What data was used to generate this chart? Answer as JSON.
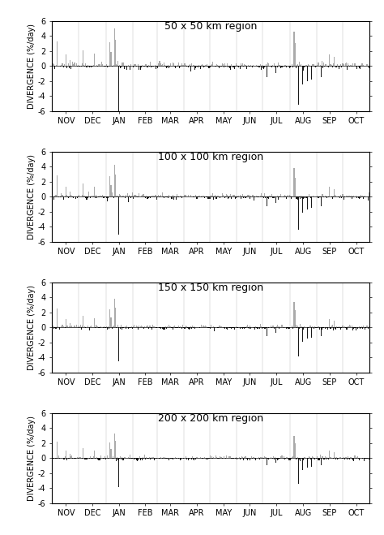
{
  "titles": [
    "50 x 50 km region",
    "100 x 100 km region",
    "150 x 150 km region",
    "200 x 200 km region"
  ],
  "ylabel": "DIVERGENCE (%/day)",
  "ylim": [
    -6,
    6
  ],
  "yticks": [
    -6,
    -4,
    -2,
    0,
    2,
    4,
    6
  ],
  "months": [
    "NOV",
    "DEC",
    "JAN",
    "FEB",
    "MAR",
    "APR",
    "MAY",
    "JUN",
    "JUL",
    "AUG",
    "SEP",
    "OCT"
  ],
  "bar_color_pos": "#aaaaaa",
  "bar_color_neg": "#1a1a1a",
  "title_fontsize": 9,
  "axis_fontsize": 7,
  "ylabel_fontsize": 7,
  "days_per_month": [
    30,
    31,
    31,
    28,
    31,
    30,
    31,
    30,
    31,
    31,
    30,
    31
  ]
}
